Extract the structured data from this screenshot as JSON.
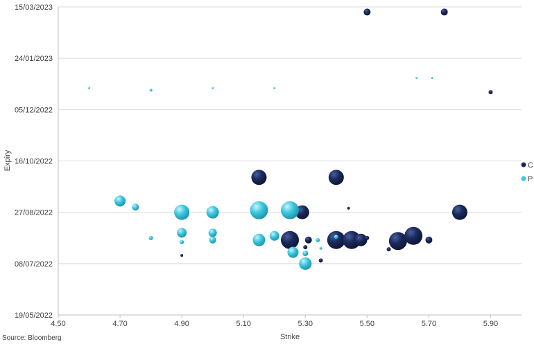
{
  "chart_data": {
    "type": "scatter",
    "subtype": "bubble",
    "xlabel": "Strike",
    "ylabel": "Expiry",
    "xlim": [
      4.5,
      6.0
    ],
    "ylim": [
      "2022-05-19",
      "2023-03-15"
    ],
    "x_ticks": [
      4.5,
      4.7,
      4.9,
      5.1,
      5.3,
      5.5,
      5.7,
      5.9
    ],
    "x_tick_labels": [
      "4.50",
      "4.70",
      "4.90",
      "5.10",
      "5.30",
      "5.50",
      "5.70",
      "5.90"
    ],
    "y_ticks": [
      "2022-05-19",
      "2022-07-08",
      "2022-08-27",
      "2022-10-16",
      "2022-12-05",
      "2023-01-24",
      "2023-03-15"
    ],
    "y_tick_labels": [
      "19/05/2022",
      "08/07/2022",
      "27/08/2022",
      "16/10/2022",
      "05/12/2022",
      "24/01/2023",
      "15/03/2023"
    ],
    "grid": "horizontal",
    "legend_position": "right",
    "source": "Source: Bloomberg",
    "colors": {
      "C": "#1a2a5c",
      "P": "#3ec9e0"
    },
    "series": [
      {
        "name": "C",
        "points": [
          {
            "x": 5.5,
            "y": "2023-03-10",
            "size": 5
          },
          {
            "x": 5.75,
            "y": "2023-03-10",
            "size": 5
          },
          {
            "x": 5.9,
            "y": "2022-12-22",
            "size": 3
          },
          {
            "x": 5.15,
            "y": "2022-09-30",
            "size": 11
          },
          {
            "x": 5.4,
            "y": "2022-09-30",
            "size": 11
          },
          {
            "x": 5.29,
            "y": "2022-08-27",
            "size": 10
          },
          {
            "x": 5.8,
            "y": "2022-08-27",
            "size": 11
          },
          {
            "x": 5.44,
            "y": "2022-08-31",
            "size": 2
          },
          {
            "x": 5.25,
            "y": "2022-07-31",
            "size": 13
          },
          {
            "x": 5.4,
            "y": "2022-07-31",
            "size": 13
          },
          {
            "x": 5.45,
            "y": "2022-07-31",
            "size": 13
          },
          {
            "x": 5.48,
            "y": "2022-07-31",
            "size": 9
          },
          {
            "x": 5.6,
            "y": "2022-07-30",
            "size": 13
          },
          {
            "x": 5.65,
            "y": "2022-08-04",
            "size": 13
          },
          {
            "x": 5.7,
            "y": "2022-07-31",
            "size": 5
          },
          {
            "x": 5.5,
            "y": "2022-08-02",
            "size": 3
          },
          {
            "x": 5.31,
            "y": "2022-07-31",
            "size": 5
          },
          {
            "x": 5.3,
            "y": "2022-07-24",
            "size": 3
          },
          {
            "x": 5.35,
            "y": "2022-07-11",
            "size": 3
          },
          {
            "x": 5.57,
            "y": "2022-07-22",
            "size": 3
          },
          {
            "x": 4.9,
            "y": "2022-07-16",
            "size": 2
          }
        ]
      },
      {
        "name": "P",
        "points": [
          {
            "x": 4.7,
            "y": "2022-09-07",
            "size": 8
          },
          {
            "x": 4.75,
            "y": "2022-09-01",
            "size": 5
          },
          {
            "x": 4.9,
            "y": "2022-08-27",
            "size": 11
          },
          {
            "x": 5.0,
            "y": "2022-08-27",
            "size": 9
          },
          {
            "x": 5.15,
            "y": "2022-08-29",
            "size": 13
          },
          {
            "x": 5.25,
            "y": "2022-08-29",
            "size": 13
          },
          {
            "x": 4.9,
            "y": "2022-08-07",
            "size": 7
          },
          {
            "x": 5.0,
            "y": "2022-08-07",
            "size": 6
          },
          {
            "x": 5.2,
            "y": "2022-08-04",
            "size": 7
          },
          {
            "x": 5.15,
            "y": "2022-07-31",
            "size": 9
          },
          {
            "x": 5.0,
            "y": "2022-07-31",
            "size": 5
          },
          {
            "x": 4.8,
            "y": "2022-08-02",
            "size": 3
          },
          {
            "x": 4.9,
            "y": "2022-07-29",
            "size": 3
          },
          {
            "x": 5.26,
            "y": "2022-07-19",
            "size": 8
          },
          {
            "x": 5.3,
            "y": "2022-07-08",
            "size": 9
          },
          {
            "x": 5.3,
            "y": "2022-07-18",
            "size": 4
          },
          {
            "x": 5.34,
            "y": "2022-07-31",
            "size": 3
          },
          {
            "x": 5.35,
            "y": "2022-07-23",
            "size": 2
          },
          {
            "x": 5.4,
            "y": "2022-08-03",
            "size": 3
          },
          {
            "x": 4.6,
            "y": "2022-12-26",
            "size": 1.5
          },
          {
            "x": 4.8,
            "y": "2022-12-24",
            "size": 2
          },
          {
            "x": 5.0,
            "y": "2022-12-26",
            "size": 1.5
          },
          {
            "x": 5.2,
            "y": "2022-12-26",
            "size": 1.5
          },
          {
            "x": 5.66,
            "y": "2023-01-05",
            "size": 1.5
          },
          {
            "x": 5.71,
            "y": "2023-01-05",
            "size": 1.5
          }
        ]
      }
    ]
  }
}
